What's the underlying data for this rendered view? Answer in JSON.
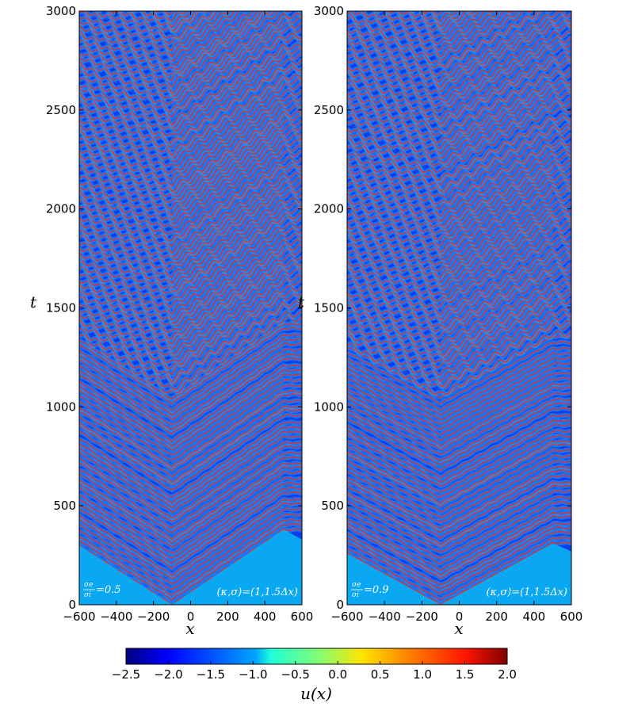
{
  "chart_data": [
    {
      "type": "heatmap",
      "panel": "left",
      "xlabel": "x",
      "ylabel": "t",
      "xlim": [
        -600,
        600
      ],
      "ylim": [
        0,
        3000
      ],
      "xticks": [
        "−600",
        "−400",
        "−200",
        "0",
        "200",
        "400",
        "600"
      ],
      "yticks": [
        "0",
        "500",
        "1000",
        "1500",
        "2000",
        "2500",
        "3000"
      ],
      "annotation_ratio": {
        "numerator": "σe",
        "denominator": "σi",
        "value": "=0.5"
      },
      "annotation_params": "(κ,σ)=(1,1.5Δx)",
      "wave_origin_x": -100,
      "initial_front_edges": [
        [
          -600,
          300
        ],
        [
          -100,
          0
        ],
        [
          500,
          380
        ],
        [
          600,
          330
        ]
      ],
      "background_value": -1.3
    },
    {
      "type": "heatmap",
      "panel": "right",
      "xlabel": "x",
      "ylabel": "t",
      "xlim": [
        -600,
        600
      ],
      "ylim": [
        0,
        3000
      ],
      "xticks": [
        "−600",
        "−400",
        "−200",
        "0",
        "200",
        "400",
        "600"
      ],
      "yticks": [
        "0",
        "500",
        "1000",
        "1500",
        "2000",
        "2500",
        "3000"
      ],
      "annotation_ratio": {
        "numerator": "σe",
        "denominator": "σi",
        "value": "=0.9"
      },
      "annotation_params": "(κ,σ)=(1,1.5Δx)",
      "wave_origin_x": -100,
      "initial_front_edges": [
        [
          -600,
          260
        ],
        [
          -100,
          0
        ],
        [
          500,
          310
        ],
        [
          600,
          270
        ]
      ],
      "background_value": -1.3
    }
  ],
  "colorbar": {
    "label": "u(x)",
    "range": [
      -2.5,
      2.0
    ],
    "ticks": [
      "−2.5",
      "−2.0",
      "−1.5",
      "−1.0",
      "−0.5",
      "0.0",
      "0.5",
      "1.0",
      "1.5",
      "2.0"
    ],
    "colormap": "jet"
  }
}
